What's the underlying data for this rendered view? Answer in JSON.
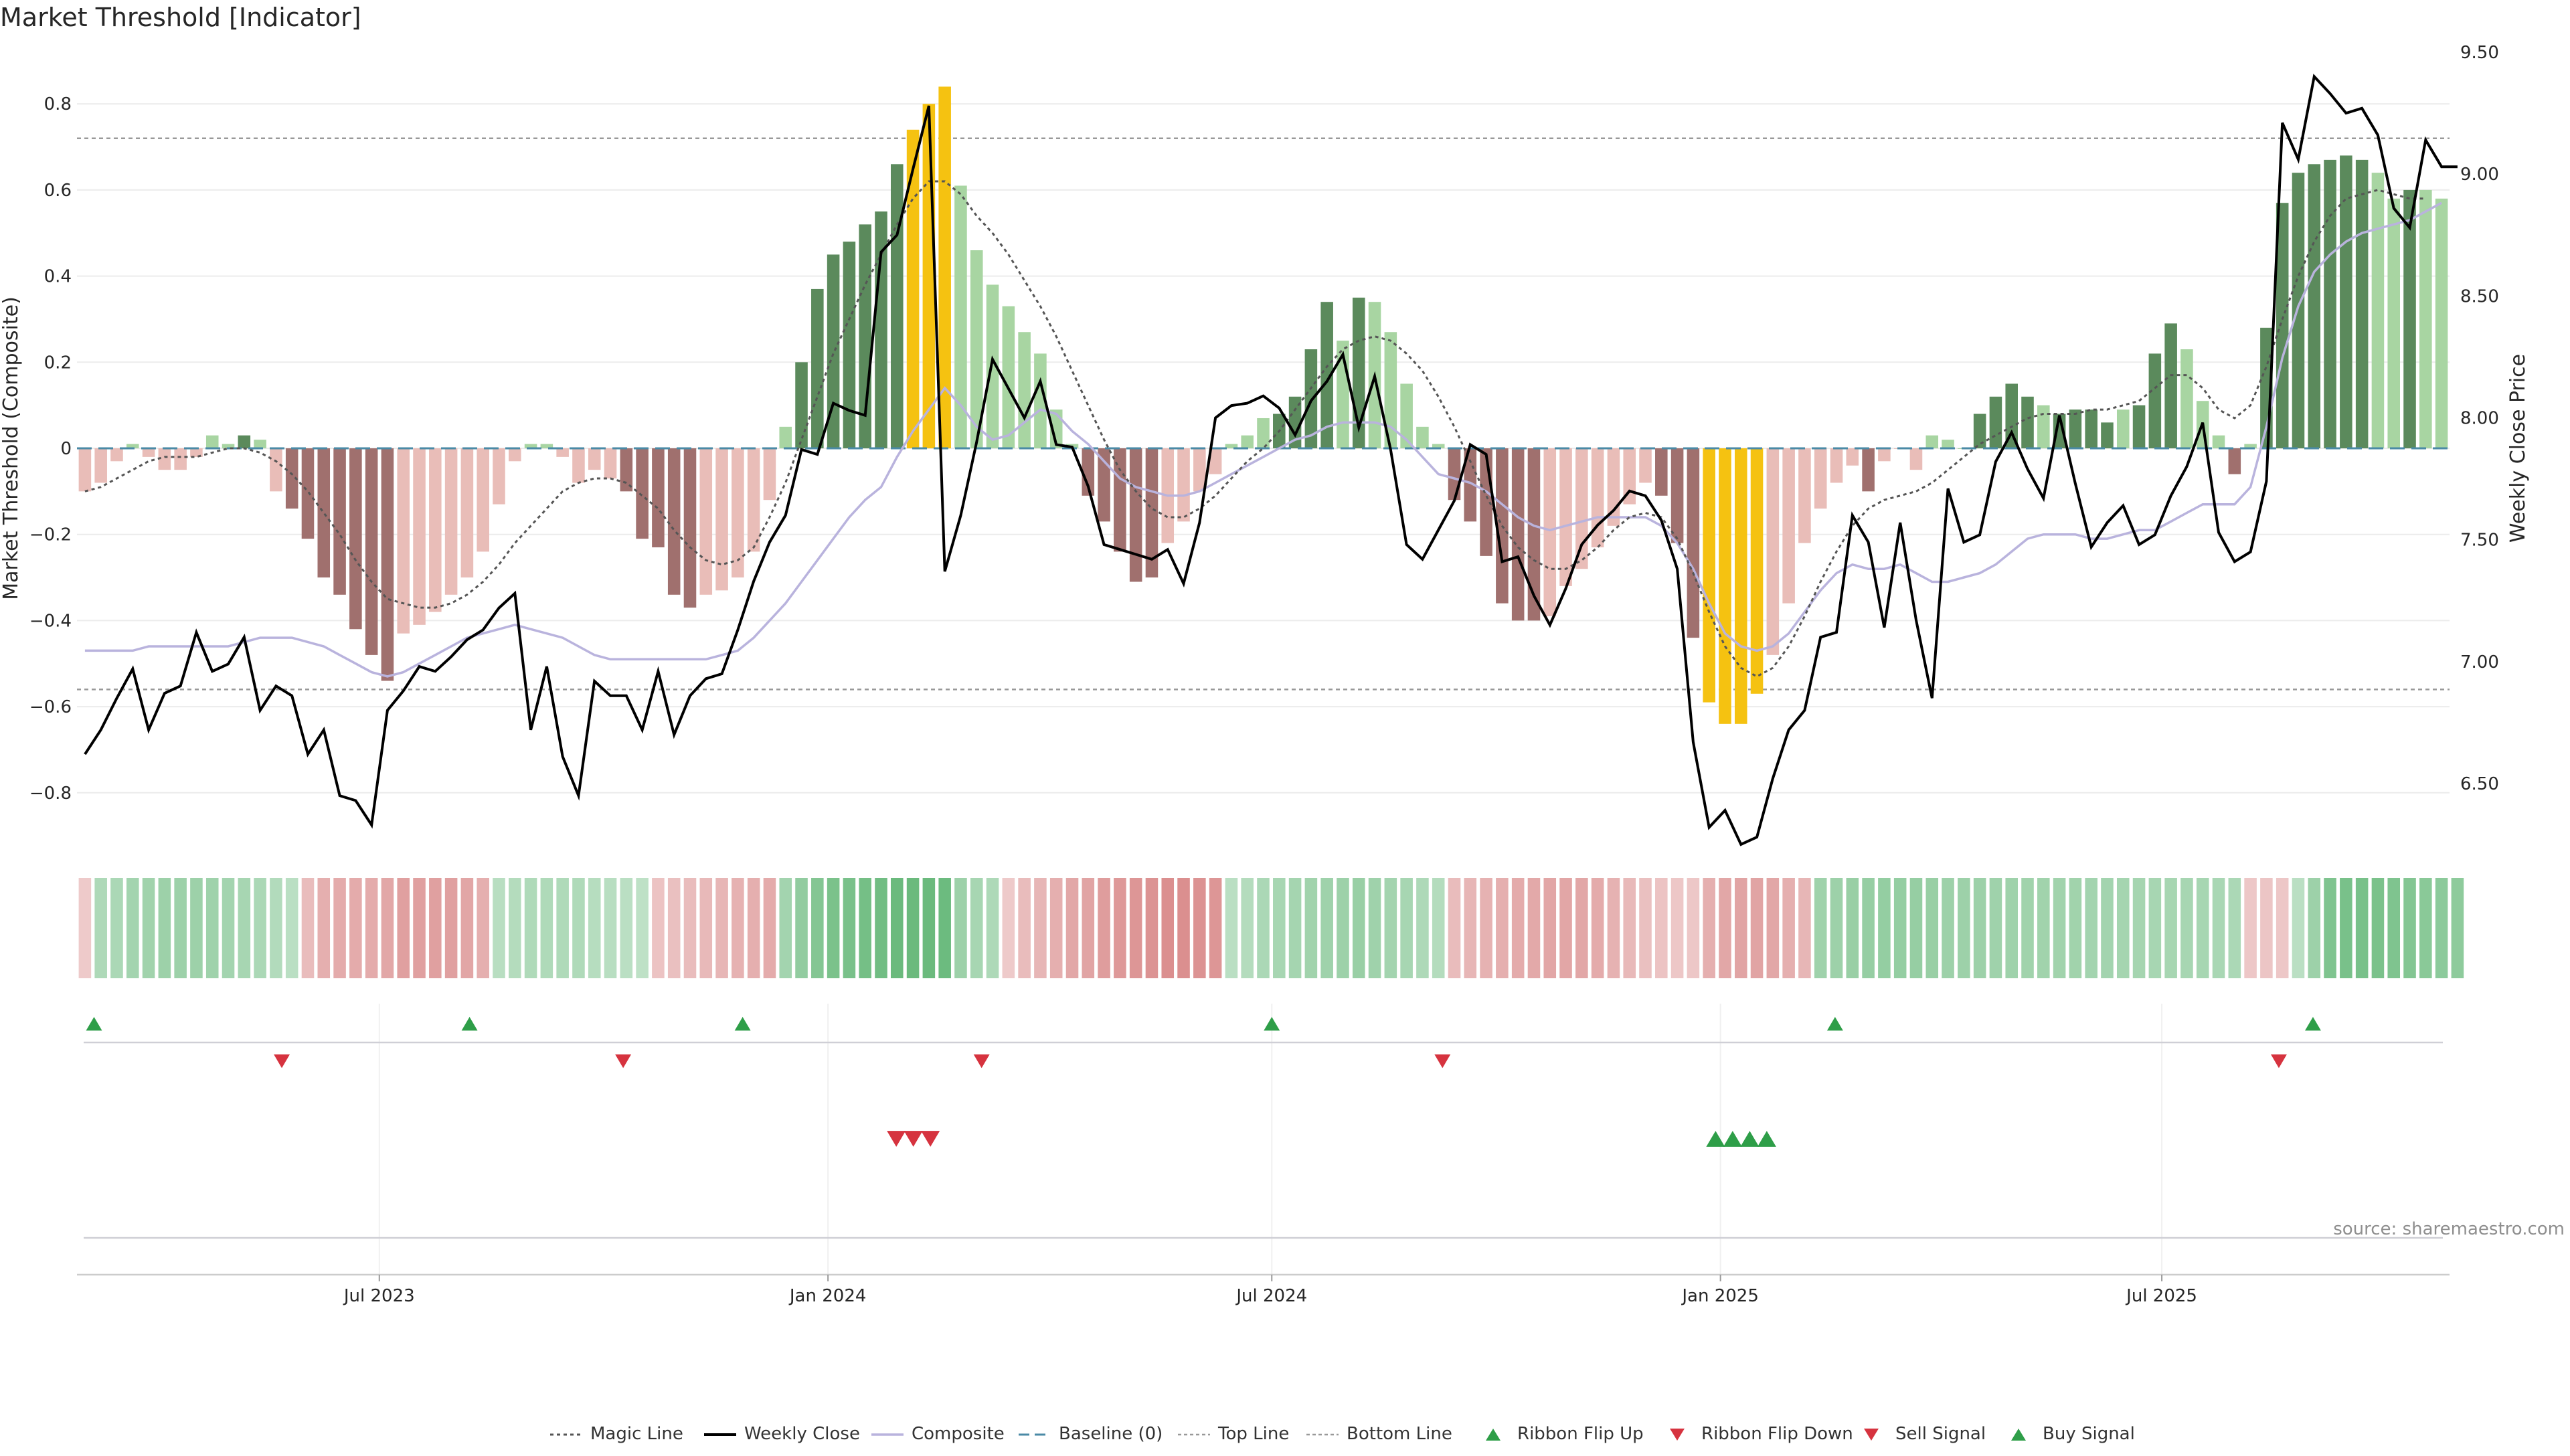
{
  "title": "Market Threshold [Indicator]",
  "source": "source: sharemaestro.com",
  "colors": {
    "strong_up": "#5b8a5c",
    "weak_up": "#a8d5a2",
    "strong_down": "#a0706e",
    "weak_down": "#e9bdb8",
    "extreme": "#f5c211",
    "price": "#000000",
    "composite": "#b9b3dd",
    "magic": "#555555",
    "baseline": "#4a8aa6",
    "buy": "#2e9e48",
    "sell": "#d6333f"
  },
  "chart_data": {
    "type": "bar",
    "title": "Market Threshold [Indicator]",
    "ylabel_left": "Market Threshold (Composite)",
    "ylabel_right": "Weekly Close Price",
    "ylim_left": [
      -0.92,
      0.92
    ],
    "ylim_right": [
      6.25,
      9.5
    ],
    "yticks_left": [
      0.8,
      0.6,
      0.4,
      0.2,
      0,
      -0.2,
      -0.4,
      -0.6,
      -0.8
    ],
    "yticks_left_labels": [
      "0.8",
      "0.6",
      "0.4",
      "0.2",
      "0",
      "−0.2",
      "−0.4",
      "−0.6",
      "−0.8"
    ],
    "yticks_right": [
      9.5,
      9.0,
      8.5,
      8.0,
      7.5,
      7.0,
      6.5
    ],
    "yticks_right_labels": [
      "9.50",
      "9.00",
      "8.50",
      "8.00",
      "7.50",
      "7.00",
      "6.50"
    ],
    "top_line": 0.72,
    "bottom_line": -0.56,
    "x_start": "2023-02-27",
    "x_end": "2025-10-27",
    "x_ticks": [
      {
        "date": "2023-07-01",
        "label": "Jul 2023"
      },
      {
        "date": "2024-01-01",
        "label": "Jan 2024"
      },
      {
        "date": "2024-07-01",
        "label": "Jul 2024"
      },
      {
        "date": "2025-01-01",
        "label": "Jan 2025"
      },
      {
        "date": "2025-07-01",
        "label": "Jul 2025"
      }
    ],
    "composite_bars": [
      -0.1,
      -0.08,
      -0.03,
      0.01,
      -0.02,
      -0.05,
      -0.05,
      -0.02,
      0.03,
      0.01,
      0.03,
      0.02,
      -0.1,
      -0.14,
      -0.21,
      -0.3,
      -0.34,
      -0.42,
      -0.48,
      -0.54,
      -0.43,
      -0.41,
      -0.38,
      -0.34,
      -0.3,
      -0.24,
      -0.13,
      -0.03,
      0.01,
      0.01,
      -0.02,
      -0.08,
      -0.05,
      -0.07,
      -0.1,
      -0.21,
      -0.23,
      -0.34,
      -0.37,
      -0.34,
      -0.33,
      -0.3,
      -0.24,
      -0.12,
      0.05,
      0.2,
      0.37,
      0.45,
      0.48,
      0.52,
      0.55,
      0.66,
      0.74,
      0.8,
      0.84,
      0.61,
      0.46,
      0.38,
      0.33,
      0.27,
      0.22,
      0.09,
      0.01,
      -0.11,
      -0.17,
      -0.24,
      -0.31,
      -0.3,
      -0.22,
      -0.17,
      -0.1,
      -0.06,
      0.01,
      0.03,
      0.07,
      0.08,
      0.12,
      0.23,
      0.34,
      0.25,
      0.35,
      0.34,
      0.27,
      0.15,
      0.05,
      0.01,
      -0.12,
      -0.17,
      -0.25,
      -0.36,
      -0.4,
      -0.4,
      -0.39,
      -0.32,
      -0.28,
      -0.23,
      -0.18,
      -0.13,
      -0.08,
      -0.11,
      -0.22,
      -0.44,
      -0.59,
      -0.64,
      -0.64,
      -0.57,
      -0.48,
      -0.36,
      -0.22,
      -0.14,
      -0.08,
      -0.04,
      -0.1,
      -0.03,
      0.0,
      -0.05,
      0.03,
      0.02,
      0.0,
      0.08,
      0.12,
      0.15,
      0.12,
      0.1,
      0.08,
      0.09,
      0.09,
      0.06,
      0.09,
      0.1,
      0.22,
      0.29,
      0.23,
      0.11,
      0.03,
      -0.06,
      0.01,
      0.28,
      0.57,
      0.64,
      0.66,
      0.67,
      0.68,
      0.67,
      0.64,
      0.58,
      0.6,
      0.6,
      0.58
    ],
    "bar_class": [
      "wd",
      "wd",
      "wd",
      "wu",
      "wd",
      "wd",
      "wd",
      "wd",
      "wu",
      "wu",
      "su",
      "wu",
      "wd",
      "sd",
      "sd",
      "sd",
      "sd",
      "sd",
      "sd",
      "sd",
      "wd",
      "wd",
      "wd",
      "wd",
      "wd",
      "wd",
      "wd",
      "wd",
      "wu",
      "wu",
      "wd",
      "wd",
      "wd",
      "wd",
      "sd",
      "sd",
      "sd",
      "sd",
      "sd",
      "wd",
      "wd",
      "wd",
      "wd",
      "wd",
      "wu",
      "su",
      "su",
      "su",
      "su",
      "su",
      "su",
      "su",
      "ex",
      "ex",
      "ex",
      "wu",
      "wu",
      "wu",
      "wu",
      "wu",
      "wu",
      "wu",
      "wu",
      "sd",
      "sd",
      "sd",
      "sd",
      "sd",
      "wd",
      "wd",
      "wd",
      "wd",
      "wu",
      "wu",
      "wu",
      "su",
      "su",
      "su",
      "su",
      "wu",
      "su",
      "wu",
      "wu",
      "wu",
      "wu",
      "wu",
      "sd",
      "sd",
      "sd",
      "sd",
      "sd",
      "sd",
      "wd",
      "wd",
      "wd",
      "wd",
      "wd",
      "wd",
      "wd",
      "sd",
      "sd",
      "sd",
      "ex",
      "ex",
      "ex",
      "ex",
      "wd",
      "wd",
      "wd",
      "wd",
      "wd",
      "wd",
      "sd",
      "wd",
      "wd",
      "wd",
      "wu",
      "wu",
      "wu",
      "su",
      "su",
      "su",
      "su",
      "wu",
      "su",
      "su",
      "su",
      "su",
      "wu",
      "su",
      "su",
      "su",
      "wu",
      "wu",
      "wu",
      "sd",
      "wu",
      "su",
      "su",
      "su",
      "su",
      "su",
      "su",
      "su",
      "wu",
      "wu",
      "su",
      "wu",
      "wu"
    ],
    "weekly_close": [
      6.62,
      6.72,
      6.85,
      6.97,
      6.72,
      6.87,
      6.9,
      7.12,
      6.96,
      6.99,
      7.1,
      6.8,
      6.9,
      6.86,
      6.62,
      6.72,
      6.45,
      6.43,
      6.33,
      6.8,
      6.88,
      6.98,
      6.96,
      7.02,
      7.09,
      7.13,
      7.22,
      7.28,
      6.72,
      6.98,
      6.61,
      6.45,
      6.92,
      6.86,
      6.86,
      6.72,
      6.96,
      6.7,
      6.86,
      6.93,
      6.95,
      7.13,
      7.33,
      7.49,
      7.6,
      7.87,
      7.85,
      8.06,
      8.03,
      8.01,
      8.68,
      8.75,
      9.02,
      9.28,
      7.37,
      7.6,
      7.9,
      8.24,
      8.12,
      8.0,
      8.15,
      7.89,
      7.88,
      7.72,
      7.48,
      7.46,
      7.44,
      7.42,
      7.46,
      7.32,
      7.57,
      8.0,
      8.05,
      8.06,
      8.09,
      8.04,
      7.93,
      8.07,
      8.15,
      8.26,
      7.96,
      8.17,
      7.87,
      7.48,
      7.42,
      7.54,
      7.66,
      7.89,
      7.85,
      7.41,
      7.43,
      7.27,
      7.15,
      7.3,
      7.48,
      7.56,
      7.62,
      7.7,
      7.68,
      7.58,
      7.38,
      6.67,
      6.32,
      6.39,
      6.25,
      6.28,
      6.52,
      6.72,
      6.8,
      7.1,
      7.12,
      7.6,
      7.49,
      7.14,
      7.57,
      7.17,
      6.85,
      7.71,
      7.49,
      7.52,
      7.82,
      7.94,
      7.79,
      7.67,
      8.01,
      7.73,
      7.47,
      7.57,
      7.64,
      7.48,
      7.52,
      7.68,
      7.8,
      7.98,
      7.53,
      7.41,
      7.45,
      7.74,
      9.21,
      9.06,
      9.4,
      9.33,
      9.25,
      9.27,
      9.16,
      8.86,
      8.78,
      9.14,
      9.03,
      9.03
    ],
    "magic_line": [
      -0.1,
      -0.09,
      -0.07,
      -0.05,
      -0.03,
      -0.02,
      -0.02,
      -0.02,
      -0.01,
      0.0,
      0.0,
      -0.01,
      -0.03,
      -0.06,
      -0.1,
      -0.15,
      -0.2,
      -0.26,
      -0.31,
      -0.35,
      -0.36,
      -0.37,
      -0.37,
      -0.36,
      -0.34,
      -0.31,
      -0.27,
      -0.22,
      -0.18,
      -0.14,
      -0.1,
      -0.08,
      -0.07,
      -0.07,
      -0.08,
      -0.11,
      -0.14,
      -0.19,
      -0.23,
      -0.26,
      -0.27,
      -0.26,
      -0.23,
      -0.16,
      -0.08,
      0.02,
      0.12,
      0.22,
      0.3,
      0.38,
      0.45,
      0.52,
      0.58,
      0.62,
      0.62,
      0.59,
      0.54,
      0.5,
      0.45,
      0.39,
      0.33,
      0.26,
      0.18,
      0.1,
      0.02,
      -0.05,
      -0.1,
      -0.14,
      -0.16,
      -0.16,
      -0.14,
      -0.11,
      -0.07,
      -0.03,
      0.0,
      0.04,
      0.09,
      0.14,
      0.19,
      0.23,
      0.25,
      0.26,
      0.25,
      0.22,
      0.18,
      0.12,
      0.05,
      -0.03,
      -0.11,
      -0.18,
      -0.23,
      -0.26,
      -0.28,
      -0.28,
      -0.26,
      -0.23,
      -0.19,
      -0.16,
      -0.15,
      -0.16,
      -0.21,
      -0.29,
      -0.38,
      -0.46,
      -0.51,
      -0.53,
      -0.51,
      -0.46,
      -0.39,
      -0.31,
      -0.24,
      -0.18,
      -0.14,
      -0.12,
      -0.11,
      -0.1,
      -0.08,
      -0.05,
      -0.02,
      0.01,
      0.03,
      0.05,
      0.07,
      0.08,
      0.08,
      0.08,
      0.09,
      0.09,
      0.1,
      0.11,
      0.14,
      0.17,
      0.17,
      0.14,
      0.09,
      0.07,
      0.1,
      0.19,
      0.3,
      0.4,
      0.48,
      0.54,
      0.58,
      0.59,
      0.6,
      0.59,
      0.58,
      0.58
    ],
    "composite_line": [
      -0.47,
      -0.47,
      -0.47,
      -0.47,
      -0.46,
      -0.46,
      -0.46,
      -0.46,
      -0.46,
      -0.46,
      -0.45,
      -0.44,
      -0.44,
      -0.44,
      -0.45,
      -0.46,
      -0.48,
      -0.5,
      -0.52,
      -0.53,
      -0.52,
      -0.5,
      -0.48,
      -0.46,
      -0.44,
      -0.43,
      -0.42,
      -0.41,
      -0.42,
      -0.43,
      -0.44,
      -0.46,
      -0.48,
      -0.49,
      -0.49,
      -0.49,
      -0.49,
      -0.49,
      -0.49,
      -0.49,
      -0.48,
      -0.47,
      -0.44,
      -0.4,
      -0.36,
      -0.31,
      -0.26,
      -0.21,
      -0.16,
      -0.12,
      -0.09,
      -0.02,
      0.04,
      0.09,
      0.14,
      0.1,
      0.05,
      0.02,
      0.03,
      0.06,
      0.09,
      0.08,
      0.04,
      0.01,
      -0.03,
      -0.07,
      -0.09,
      -0.1,
      -0.11,
      -0.11,
      -0.1,
      -0.08,
      -0.06,
      -0.04,
      -0.02,
      0.0,
      0.02,
      0.03,
      0.05,
      0.06,
      0.06,
      0.06,
      0.05,
      0.02,
      -0.02,
      -0.06,
      -0.07,
      -0.08,
      -0.1,
      -0.13,
      -0.16,
      -0.18,
      -0.19,
      -0.18,
      -0.17,
      -0.16,
      -0.16,
      -0.16,
      -0.16,
      -0.18,
      -0.22,
      -0.28,
      -0.36,
      -0.43,
      -0.46,
      -0.47,
      -0.46,
      -0.43,
      -0.38,
      -0.33,
      -0.29,
      -0.27,
      -0.28,
      -0.28,
      -0.27,
      -0.29,
      -0.31,
      -0.31,
      -0.3,
      -0.29,
      -0.27,
      -0.24,
      -0.21,
      -0.2,
      -0.2,
      -0.2,
      -0.21,
      -0.21,
      -0.2,
      -0.19,
      -0.19,
      -0.17,
      -0.15,
      -0.13,
      -0.13,
      -0.13,
      -0.09,
      0.05,
      0.21,
      0.33,
      0.41,
      0.45,
      0.48,
      0.5,
      0.51,
      0.52,
      0.53,
      0.55,
      0.57
    ],
    "ribbon_composite": [
      -0.1,
      0.18,
      0.2,
      0.25,
      0.27,
      0.3,
      0.3,
      0.3,
      0.28,
      0.25,
      0.22,
      0.2,
      0.16,
      0.1,
      -0.2,
      -0.3,
      -0.32,
      -0.32,
      -0.33,
      -0.35,
      -0.4,
      -0.4,
      -0.4,
      -0.4,
      -0.36,
      -0.3,
      0.12,
      0.15,
      0.17,
      0.17,
      0.17,
      0.17,
      0.13,
      0.12,
      0.1,
      0.08,
      -0.15,
      -0.18,
      -0.2,
      -0.22,
      -0.25,
      -0.28,
      -0.3,
      -0.32,
      0.25,
      0.36,
      0.45,
      0.5,
      0.52,
      0.55,
      0.58,
      0.62,
      0.62,
      0.62,
      0.6,
      0.3,
      0.22,
      0.18,
      -0.1,
      -0.2,
      -0.25,
      -0.3,
      -0.35,
      -0.38,
      -0.42,
      -0.45,
      -0.48,
      -0.5,
      -0.52,
      -0.52,
      -0.5,
      -0.48,
      0.1,
      0.15,
      0.2,
      0.22,
      0.24,
      0.26,
      0.28,
      0.3,
      0.32,
      0.28,
      0.25,
      0.22,
      0.18,
      0.15,
      -0.2,
      -0.25,
      -0.28,
      -0.3,
      -0.32,
      -0.34,
      -0.36,
      -0.36,
      -0.35,
      -0.32,
      -0.28,
      -0.22,
      -0.18,
      -0.15,
      -0.12,
      -0.12,
      -0.3,
      -0.35,
      -0.38,
      -0.38,
      -0.35,
      -0.3,
      -0.25,
      0.28,
      0.3,
      0.32,
      0.33,
      0.34,
      0.34,
      0.33,
      0.32,
      0.3,
      0.29,
      0.29,
      0.28,
      0.28,
      0.27,
      0.27,
      0.26,
      0.26,
      0.25,
      0.25,
      0.24,
      0.24,
      0.23,
      0.23,
      0.22,
      0.22,
      0.21,
      0.2,
      -0.12,
      -0.14,
      -0.12,
      0.1,
      0.3,
      0.48,
      0.52,
      0.52,
      0.5,
      0.48,
      0.46,
      0.42,
      0.4,
      0.38
    ],
    "ribbon_flip_up": [
      "2023-03-06",
      "2023-08-07",
      "2023-11-27",
      "2024-07-01",
      "2025-02-17",
      "2025-09-01"
    ],
    "ribbon_flip_down": [
      "2023-05-22",
      "2023-10-09",
      "2024-03-04",
      "2024-09-09",
      "2025-08-18"
    ],
    "sell_signal": [
      "2024-01-29",
      "2024-02-05",
      "2024-02-12"
    ],
    "buy_signal": [
      "2024-12-30",
      "2025-01-06",
      "2025-01-13",
      "2025-01-20"
    ],
    "legend": [
      {
        "key": "magic",
        "label": "Magic Line"
      },
      {
        "key": "price",
        "label": "Weekly Close"
      },
      {
        "key": "composite",
        "label": "Composite"
      },
      {
        "key": "baseline",
        "label": "Baseline (0)"
      },
      {
        "key": "top",
        "label": "Top Line"
      },
      {
        "key": "bottom",
        "label": "Bottom Line"
      },
      {
        "key": "flipup",
        "label": "Ribbon Flip Up"
      },
      {
        "key": "flipdown",
        "label": "Ribbon Flip Down"
      },
      {
        "key": "sell",
        "label": "Sell Signal"
      },
      {
        "key": "buy",
        "label": "Buy Signal"
      }
    ]
  }
}
